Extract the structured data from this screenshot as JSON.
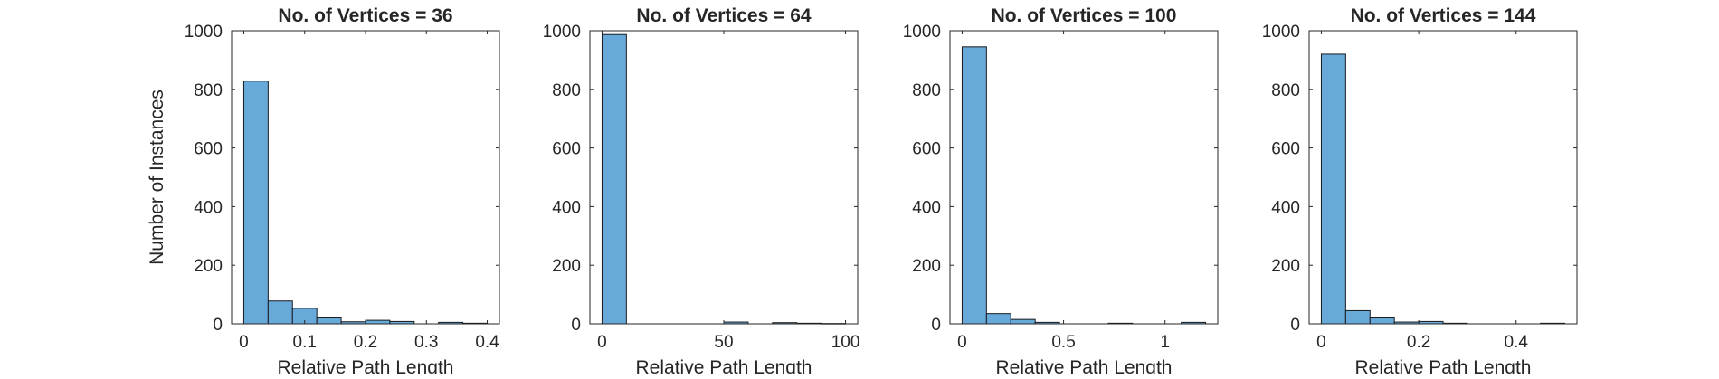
{
  "chart_data": [
    {
      "type": "histogram",
      "title": "No. of Vertices = 36",
      "xlabel": "Relative Path Length",
      "ylabel": "Number of Instances",
      "bar_color": "#67A9D9",
      "edge_color": "#1a1a1a",
      "xlim": [
        -0.02,
        0.42
      ],
      "ylim": [
        0,
        1000
      ],
      "xticks": [
        0,
        0.1,
        0.2,
        0.3,
        0.4
      ],
      "xtick_labels": [
        "0",
        "0.1",
        "0.2",
        "0.3",
        "0.4"
      ],
      "yticks": [
        0,
        200,
        400,
        600,
        800,
        1000
      ],
      "ytick_labels": [
        "0",
        "200",
        "400",
        "600",
        "800",
        "1000"
      ],
      "bin_edges": [
        0,
        0.04,
        0.08,
        0.12,
        0.16,
        0.2,
        0.24,
        0.28,
        0.32,
        0.36,
        0.4
      ],
      "counts": [
        828,
        78,
        53,
        20,
        7,
        12,
        8,
        0,
        5,
        2
      ]
    },
    {
      "type": "histogram",
      "title": "No. of Vertices = 64",
      "xlabel": "Relative Path Length",
      "ylabel": "",
      "bar_color": "#67A9D9",
      "edge_color": "#1a1a1a",
      "xlim": [
        -5,
        105
      ],
      "ylim": [
        0,
        1000
      ],
      "xticks": [
        0,
        50,
        100
      ],
      "xtick_labels": [
        "0",
        "50",
        "100"
      ],
      "yticks": [
        0,
        200,
        400,
        600,
        800,
        1000
      ],
      "ytick_labels": [
        "0",
        "200",
        "400",
        "600",
        "800",
        "1000"
      ],
      "bin_edges": [
        0,
        10,
        20,
        30,
        40,
        50,
        60,
        70,
        80,
        90,
        100
      ],
      "counts": [
        987,
        0,
        0,
        0,
        0,
        6,
        0,
        4,
        2,
        1
      ]
    },
    {
      "type": "histogram",
      "title": "No. of Vertices = 100",
      "xlabel": "Relative Path Length",
      "ylabel": "",
      "bar_color": "#67A9D9",
      "edge_color": "#1a1a1a",
      "xlim": [
        -0.06,
        1.26
      ],
      "ylim": [
        0,
        1000
      ],
      "xticks": [
        0,
        0.5,
        1
      ],
      "xtick_labels": [
        "0",
        "0.5",
        "1"
      ],
      "yticks": [
        0,
        200,
        400,
        600,
        800,
        1000
      ],
      "ytick_labels": [
        "0",
        "200",
        "400",
        "600",
        "800",
        "1000"
      ],
      "bin_edges": [
        0,
        0.12,
        0.24,
        0.36,
        0.48,
        0.6,
        0.72,
        0.84,
        0.96,
        1.08,
        1.2
      ],
      "counts": [
        945,
        35,
        15,
        5,
        0,
        0,
        2,
        0,
        0,
        5
      ]
    },
    {
      "type": "histogram",
      "title": "No. of Vertices = 144",
      "xlabel": "Relative Path Length",
      "ylabel": "",
      "bar_color": "#67A9D9",
      "edge_color": "#1a1a1a",
      "xlim": [
        -0.025,
        0.525
      ],
      "ylim": [
        0,
        1000
      ],
      "xticks": [
        0,
        0.2,
        0.4
      ],
      "xtick_labels": [
        "0",
        "0.2",
        "0.4"
      ],
      "yticks": [
        0,
        200,
        400,
        600,
        800,
        1000
      ],
      "ytick_labels": [
        "0",
        "200",
        "400",
        "600",
        "800",
        "1000"
      ],
      "bin_edges": [
        0,
        0.05,
        0.1,
        0.15,
        0.2,
        0.25,
        0.3,
        0.35,
        0.4,
        0.45,
        0.5
      ],
      "counts": [
        920,
        45,
        20,
        6,
        8,
        2,
        0,
        0,
        0,
        2
      ]
    }
  ]
}
